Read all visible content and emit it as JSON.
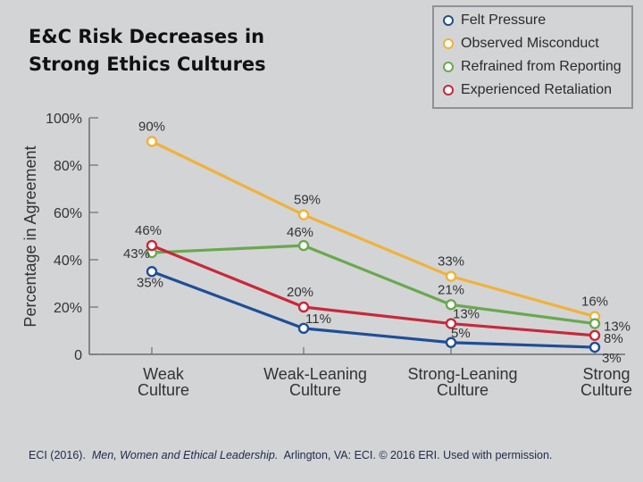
{
  "title_line1": "E&C Risk Decreases in",
  "title_line2": "Strong Ethics Cultures",
  "citation": {
    "part1": "ECI (2016).",
    "italic": "Men, Women and Ethical Leadership.",
    "part2": "Arlington, VA: ECI. © 2016 ERI. Used with permission."
  },
  "chart_data": {
    "type": "line",
    "title": "E&C Risk Decreases in Strong Ethics Cultures",
    "xlabel": "",
    "ylabel": "Percentage in Agreement",
    "categories": [
      [
        "Weak",
        "Culture"
      ],
      [
        "Weak-Leaning",
        "Culture"
      ],
      [
        "Strong-Leaning",
        "Culture"
      ],
      [
        "Strong",
        "Culture"
      ]
    ],
    "ylim": [
      0,
      100
    ],
    "yticks": [
      0,
      20,
      40,
      60,
      80,
      100
    ],
    "ytick_labels": [
      "0",
      "20%",
      "40%",
      "60%",
      "80%",
      "100%"
    ],
    "grid": false,
    "legend_position": "top-right",
    "series": [
      {
        "name": "Felt Pressure",
        "color": "#1f4e96",
        "values": [
          35,
          11,
          5,
          3
        ]
      },
      {
        "name": "Observed Misconduct",
        "color": "#f0b23a",
        "values": [
          90,
          59,
          33,
          16
        ]
      },
      {
        "name": "Refrained from Reporting",
        "color": "#6aa84f",
        "values": [
          43,
          46,
          21,
          13
        ]
      },
      {
        "name": "Experienced Retaliation",
        "color": "#c8283a",
        "values": [
          46,
          20,
          13,
          8
        ]
      }
    ],
    "data_labels": [
      {
        "series": 0,
        "labels": [
          "35%",
          "11%",
          "5%",
          "3%"
        ]
      },
      {
        "series": 1,
        "labels": [
          "90%",
          "59%",
          "33%",
          "16%"
        ]
      },
      {
        "series": 2,
        "labels": [
          "43%",
          "46%",
          "21%",
          "13%"
        ]
      },
      {
        "series": 3,
        "labels": [
          "46%",
          "20%",
          "13%",
          "8%"
        ]
      }
    ]
  }
}
